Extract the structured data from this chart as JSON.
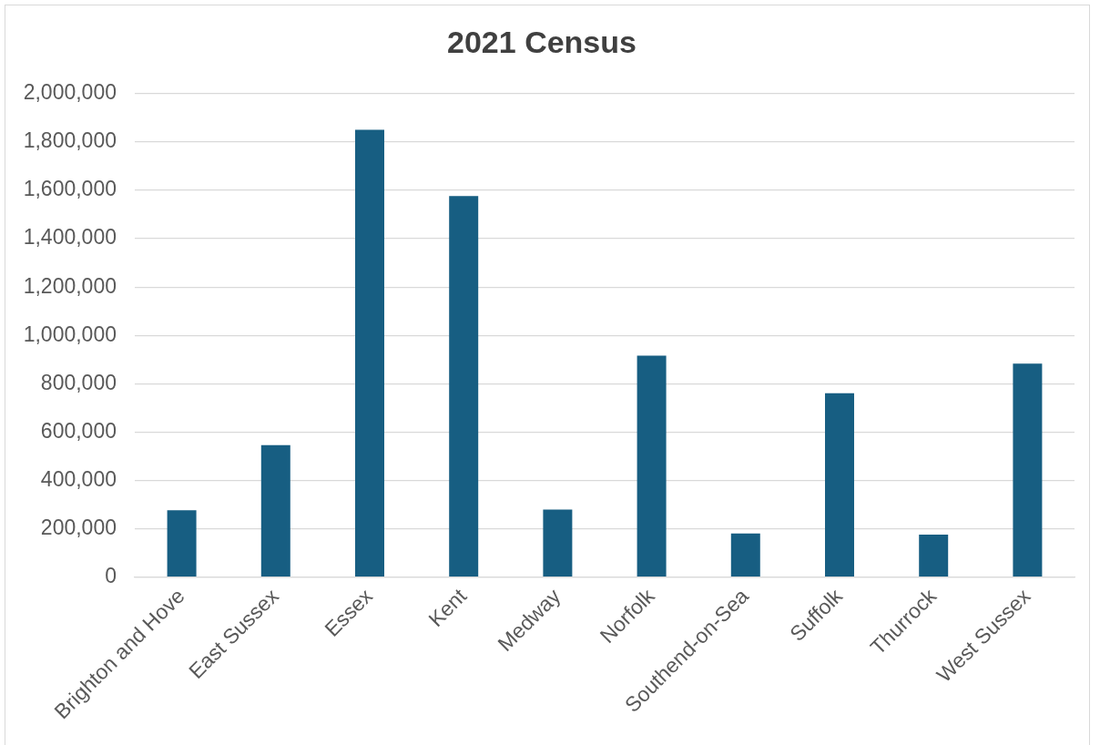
{
  "chart_data": {
    "type": "bar",
    "title": "2021 Census",
    "categories": [
      "Brighton and Hove",
      "East Sussex",
      "Essex",
      "Kent",
      "Medway",
      "Norfolk",
      "Southend-on-Sea",
      "Suffolk",
      "Thurrock",
      "West Sussex"
    ],
    "values": [
      277000,
      546000,
      1850000,
      1576000,
      280000,
      916000,
      181000,
      761000,
      176000,
      883000
    ],
    "color": "#175e82",
    "ylim": [
      0,
      2000000
    ],
    "yticks": [
      0,
      {
        "value": 200000,
        "label": "200,000"
      },
      {
        "value": 400000,
        "label": "400,000"
      },
      {
        "value": 600000,
        "label": "600,000"
      },
      {
        "value": 800000,
        "label": "800,000"
      },
      {
        "value": 1000000,
        "label": "1,000,000"
      },
      {
        "value": 1200000,
        "label": "1,200,000"
      },
      {
        "value": 1400000,
        "label": "1,400,000"
      },
      {
        "value": 1600000,
        "label": "1,600,000"
      },
      {
        "value": 1800000,
        "label": "1,800,000"
      },
      {
        "value": 2000000,
        "label": "2,000,000"
      }
    ],
    "grid": "y"
  }
}
